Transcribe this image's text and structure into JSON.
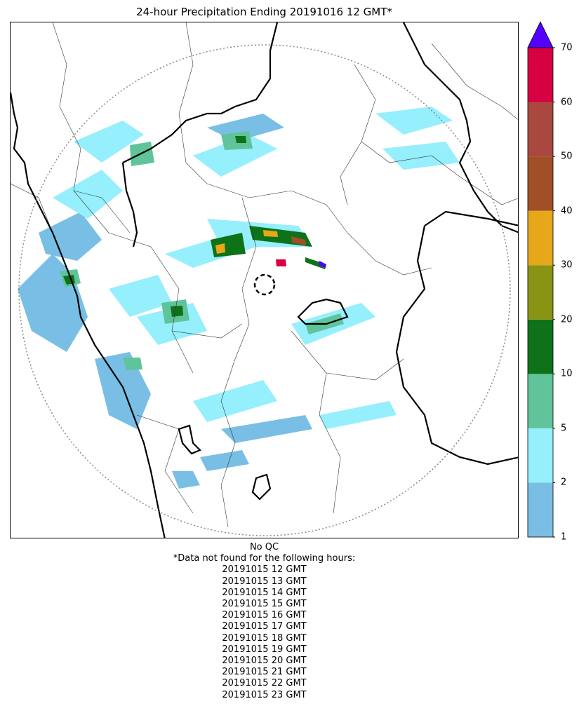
{
  "title": "24-hour Precipitation Ending 20191016 12 GMT*",
  "colorbar": {
    "ticks": [
      "1",
      "2",
      "5",
      "10",
      "20",
      "30",
      "40",
      "50",
      "60",
      "70"
    ],
    "colors": [
      "#79BFE5",
      "#95EFFD",
      "#5FC49A",
      "#0E7218",
      "#8A9414",
      "#E6A81A",
      "#A04F27",
      "#A9483F",
      "#D60042"
    ],
    "extend_color": "#5500FF"
  },
  "notes": {
    "qc": "No QC",
    "missing_header": "*Data not found for the following hours:",
    "missing_hours": [
      "20191015 12 GMT",
      "20191015 13 GMT",
      "20191015 14 GMT",
      "20191015 15 GMT",
      "20191015 16 GMT",
      "20191015 17 GMT",
      "20191015 18 GMT",
      "20191015 19 GMT",
      "20191015 20 GMT",
      "20191015 21 GMT",
      "20191015 22 GMT",
      "20191015 23 GMT"
    ]
  }
}
